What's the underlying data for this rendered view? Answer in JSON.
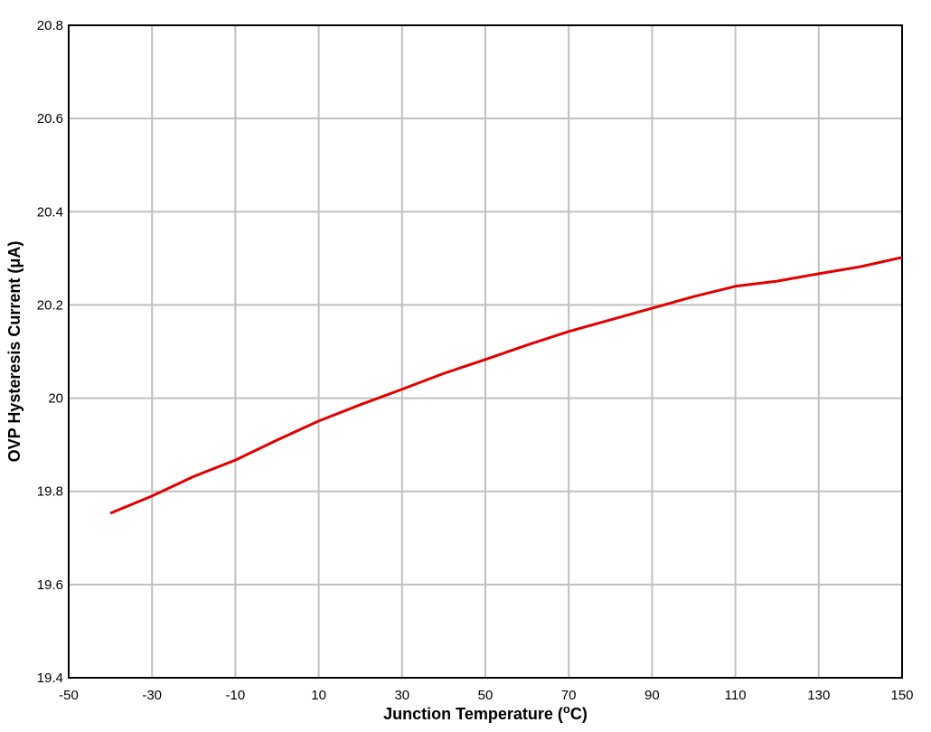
{
  "chart_data": {
    "type": "line",
    "xlabel": [
      "Junction Temperature (",
      "o",
      "C)"
    ],
    "ylabel": "OVP Hysteresis Current (μA)",
    "x": [
      -40,
      -30,
      -20,
      -10,
      0,
      10,
      20,
      30,
      40,
      50,
      60,
      70,
      80,
      90,
      100,
      110,
      120,
      130,
      140,
      150
    ],
    "series": [
      {
        "name": "OVP Hysteresis Current",
        "color": "#e00000",
        "values": [
          19.753,
          19.79,
          19.832,
          19.867,
          19.91,
          19.951,
          19.986,
          20.019,
          20.053,
          20.083,
          20.114,
          20.143,
          20.168,
          20.193,
          20.218,
          20.24,
          20.251,
          20.267,
          20.282,
          20.302
        ]
      }
    ],
    "xlim": [
      -50,
      150
    ],
    "xticks": [
      -50,
      -30,
      -10,
      10,
      30,
      50,
      70,
      90,
      110,
      130,
      150
    ],
    "ylim": [
      19.4,
      20.8
    ],
    "yticks": [
      19.4,
      19.6,
      19.8,
      20,
      20.2,
      20.4,
      20.6,
      20.8
    ],
    "grid": true
  }
}
